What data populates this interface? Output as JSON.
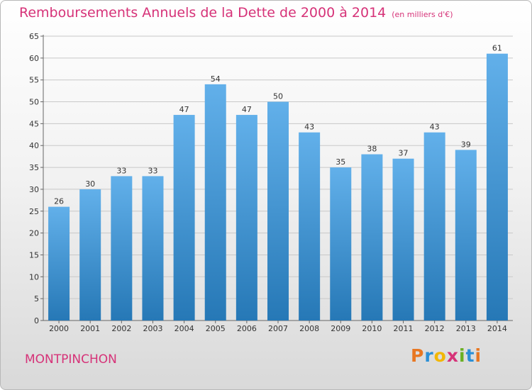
{
  "chart_data": {
    "type": "bar",
    "title": "Remboursements Annuels de la Dette de 2000 à 2014",
    "subtitle": "(en milliers d'€)",
    "categories": [
      "2000",
      "2001",
      "2002",
      "2003",
      "2004",
      "2005",
      "2006",
      "2007",
      "2008",
      "2009",
      "2010",
      "2011",
      "2012",
      "2013",
      "2014"
    ],
    "values": [
      26,
      30,
      33,
      33,
      47,
      54,
      47,
      50,
      43,
      35,
      38,
      37,
      43,
      39,
      61
    ],
    "ylim": [
      0,
      65
    ],
    "yticks": [
      0,
      5,
      10,
      15,
      20,
      25,
      30,
      35,
      40,
      45,
      50,
      55,
      60,
      65
    ],
    "grid": true,
    "xlabel": "",
    "ylabel": ""
  },
  "commune": "MONTPINCHON",
  "logo": {
    "letters": [
      "P",
      "r",
      "o",
      "x",
      "i",
      "t",
      "i"
    ],
    "colors": [
      "#e87722",
      "#2b8fd6",
      "#f2b705",
      "#d63278",
      "#6ab023",
      "#2b8fd6",
      "#e87722"
    ]
  },
  "colors": {
    "title": "#d63278",
    "bar_light": "#62b0ea",
    "bar_dark": "#2678b6",
    "grid": "#c8c8c8"
  }
}
